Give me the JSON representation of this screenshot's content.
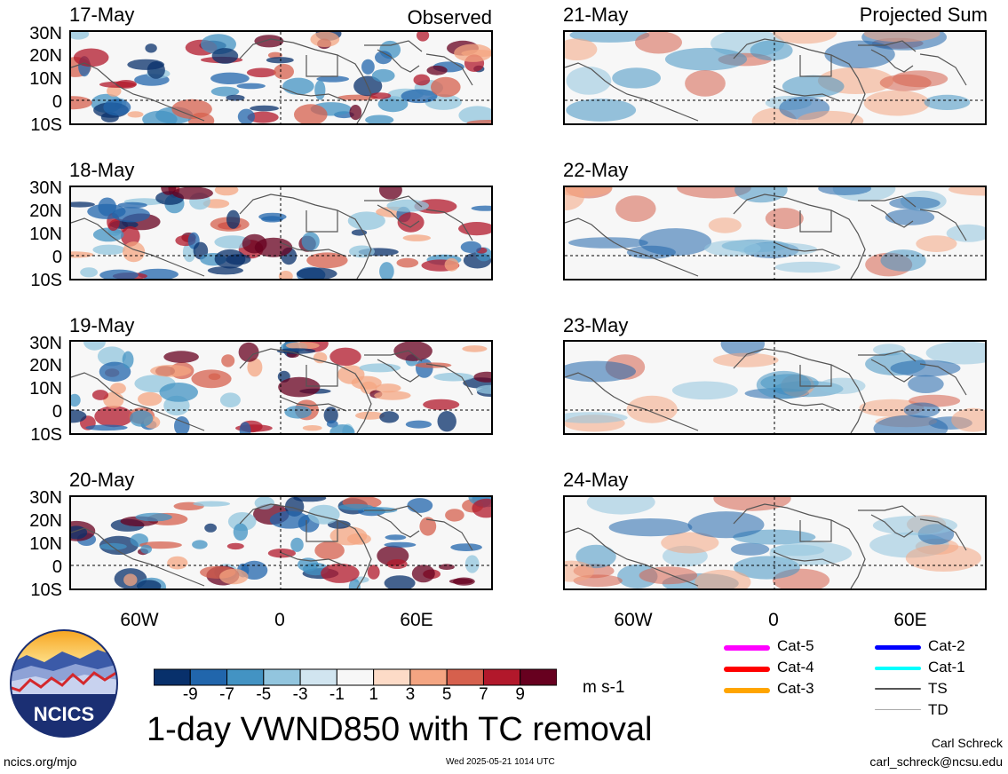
{
  "panels": {
    "left": [
      {
        "date": "17-May",
        "corner": "Observed"
      },
      {
        "date": "18-May",
        "corner": ""
      },
      {
        "date": "19-May",
        "corner": ""
      },
      {
        "date": "20-May",
        "corner": ""
      }
    ],
    "right": [
      {
        "date": "21-May",
        "corner": "Projected Sum"
      },
      {
        "date": "22-May",
        "corner": ""
      },
      {
        "date": "23-May",
        "corner": ""
      },
      {
        "date": "24-May",
        "corner": ""
      }
    ]
  },
  "lat_labels": [
    "30N",
    "20N",
    "10N",
    "0",
    "10S"
  ],
  "lon_labels": [
    "60W",
    "0",
    "60E"
  ],
  "colorbar": {
    "ticks": [
      "-9",
      "-7",
      "-5",
      "-3",
      "-1",
      "1",
      "3",
      "5",
      "7",
      "9"
    ],
    "colors": [
      "#08306b",
      "#2166ac",
      "#4393c3",
      "#92c5de",
      "#d1e5f0",
      "#f7f7f7",
      "#fddbc7",
      "#f4a582",
      "#d6604d",
      "#b2182b",
      "#67001f"
    ],
    "units": "m s-1"
  },
  "title": "1-day VWND850 with TC removal",
  "footer": {
    "site": "ncics.org/mjo",
    "timestamp": "Wed 2025-05-21 1014 UTC",
    "author": "Carl Schreck",
    "email": "carl_schreck@ncsu.edu"
  },
  "logo": {
    "text": "NCICS"
  },
  "legend": [
    {
      "label": "Cat-5",
      "color": "#ff00ff"
    },
    {
      "label": "Cat-4",
      "color": "#ff0000"
    },
    {
      "label": "Cat-3",
      "color": "#ffa500"
    },
    {
      "label": "Cat-2",
      "color": "#0000ff"
    },
    {
      "label": "Cat-1",
      "color": "#00ffff"
    },
    {
      "label": "TS",
      "color": "#555555"
    },
    {
      "label": "TD",
      "color": "#aaaaaa"
    }
  ]
}
